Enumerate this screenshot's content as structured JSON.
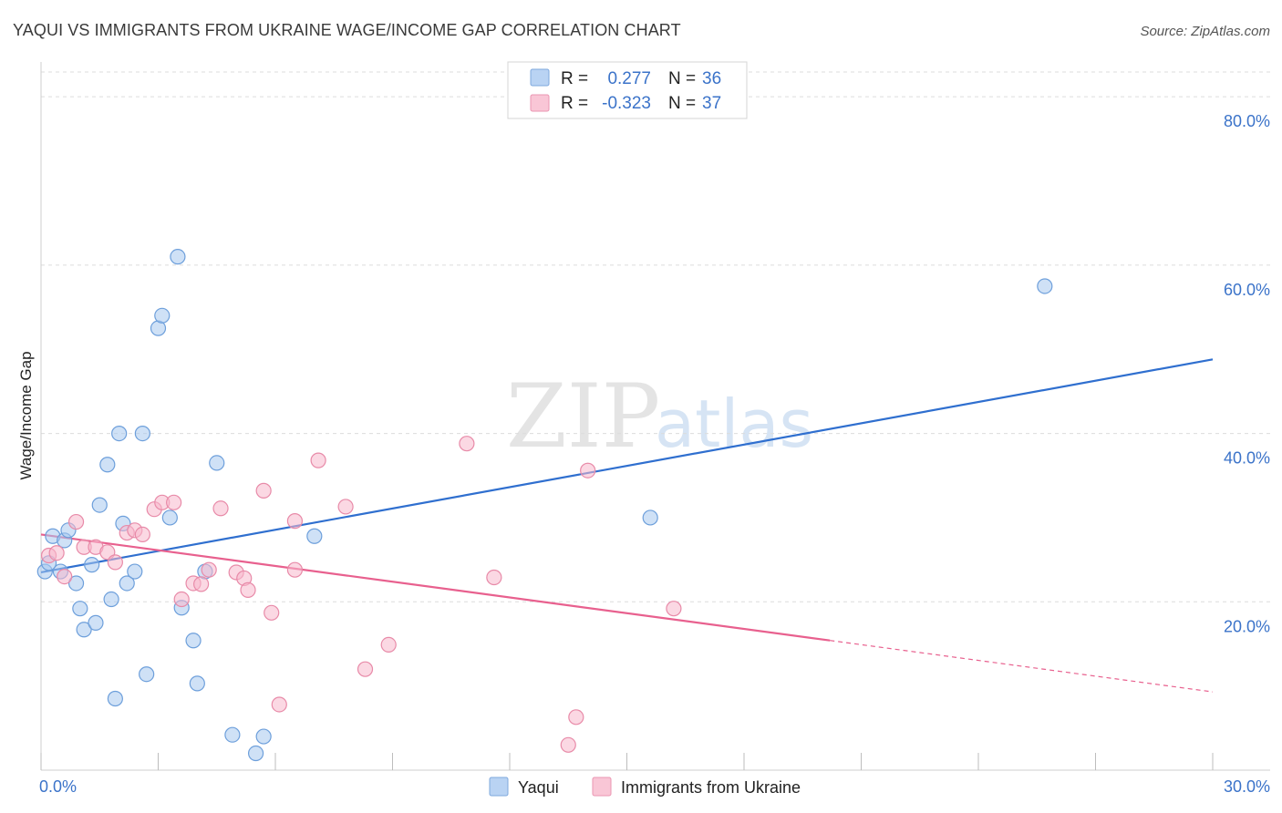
{
  "chart_data": {
    "type": "scatter",
    "title": "YAQUI VS IMMIGRANTS FROM UKRAINE WAGE/INCOME GAP CORRELATION CHART",
    "source": "Source: ZipAtlas.com",
    "ylabel": "Wage/Income Gap",
    "xlabel": "",
    "xlim": [
      0,
      30
    ],
    "ylim": [
      0,
      85
    ],
    "x_tick_labels": [
      {
        "value": 0,
        "label": "0.0%"
      },
      {
        "value": 30,
        "label": "30.0%"
      }
    ],
    "y_tick_labels": [
      {
        "value": 20,
        "label": "20.0%"
      },
      {
        "value": 40,
        "label": "40.0%"
      },
      {
        "value": 60,
        "label": "60.0%"
      },
      {
        "value": 80,
        "label": "80.0%"
      }
    ],
    "x_minor_ticks": [
      0,
      3,
      6,
      9,
      12,
      15,
      18,
      21,
      24,
      27,
      30
    ],
    "grid": true,
    "watermark": {
      "zip": "ZIP",
      "atlas": "atlas"
    },
    "stats_legend": [
      {
        "series": "Yaqui",
        "r_label": "R =",
        "r_value": "0.277",
        "n_label": "N =",
        "n_value": "36"
      },
      {
        "series": "Immigrants from Ukraine",
        "r_label": "R =",
        "r_value": "-0.323",
        "n_label": "N =",
        "n_value": "37"
      }
    ],
    "series": [
      {
        "name": "Yaqui",
        "color": "#a8c8ef",
        "stroke": "#6d9fdb",
        "trend_color": "#2f6fcf",
        "trend": {
          "x1": 0,
          "y1": 23.5,
          "x2": 30,
          "y2": 48.8,
          "solid_until": 30
        },
        "points": [
          [
            0.1,
            23.6
          ],
          [
            0.2,
            24.6
          ],
          [
            0.3,
            27.8
          ],
          [
            0.5,
            23.6
          ],
          [
            0.6,
            27.3
          ],
          [
            0.7,
            28.5
          ],
          [
            0.9,
            22.2
          ],
          [
            1.0,
            19.2
          ],
          [
            1.1,
            16.7
          ],
          [
            1.3,
            24.4
          ],
          [
            1.4,
            17.5
          ],
          [
            1.5,
            31.5
          ],
          [
            1.7,
            36.3
          ],
          [
            1.8,
            20.3
          ],
          [
            1.9,
            8.5
          ],
          [
            2.0,
            40.0
          ],
          [
            2.1,
            29.3
          ],
          [
            2.2,
            22.2
          ],
          [
            2.4,
            23.6
          ],
          [
            2.6,
            40.0
          ],
          [
            2.7,
            11.4
          ],
          [
            3.0,
            52.5
          ],
          [
            3.1,
            54.0
          ],
          [
            3.3,
            30.0
          ],
          [
            3.5,
            61.0
          ],
          [
            3.6,
            19.3
          ],
          [
            3.9,
            15.4
          ],
          [
            4.0,
            10.3
          ],
          [
            4.2,
            23.6
          ],
          [
            4.5,
            36.5
          ],
          [
            4.9,
            4.2
          ],
          [
            5.5,
            2.0
          ],
          [
            5.7,
            4.0
          ],
          [
            7.0,
            27.8
          ],
          [
            15.6,
            30.0
          ],
          [
            25.7,
            57.5
          ]
        ]
      },
      {
        "name": "Immigrants from Ukraine",
        "color": "#f7b8cc",
        "stroke": "#e88aa8",
        "trend_color": "#e8608e",
        "trend": {
          "x1": 0,
          "y1": 28.0,
          "x2": 30,
          "y2": 9.3,
          "solid_until": 20.2
        },
        "points": [
          [
            0.2,
            25.5
          ],
          [
            0.4,
            25.8
          ],
          [
            0.6,
            23.0
          ],
          [
            0.9,
            29.5
          ],
          [
            1.1,
            26.5
          ],
          [
            1.4,
            26.5
          ],
          [
            1.7,
            25.9
          ],
          [
            1.9,
            24.7
          ],
          [
            2.2,
            28.2
          ],
          [
            2.4,
            28.5
          ],
          [
            2.6,
            28.0
          ],
          [
            2.9,
            31.0
          ],
          [
            3.1,
            31.8
          ],
          [
            3.4,
            31.8
          ],
          [
            3.6,
            20.3
          ],
          [
            3.9,
            22.2
          ],
          [
            4.1,
            22.1
          ],
          [
            4.3,
            23.8
          ],
          [
            4.6,
            31.1
          ],
          [
            5.0,
            23.5
          ],
          [
            5.2,
            22.8
          ],
          [
            5.3,
            21.4
          ],
          [
            5.7,
            33.2
          ],
          [
            5.9,
            18.7
          ],
          [
            6.1,
            7.8
          ],
          [
            6.5,
            29.6
          ],
          [
            6.5,
            23.8
          ],
          [
            7.1,
            36.8
          ],
          [
            7.8,
            31.3
          ],
          [
            8.3,
            12.0
          ],
          [
            8.9,
            14.9
          ],
          [
            10.9,
            38.8
          ],
          [
            11.6,
            22.9
          ],
          [
            13.5,
            3.0
          ],
          [
            13.7,
            6.3
          ],
          [
            14.0,
            35.6
          ],
          [
            16.2,
            19.2
          ]
        ]
      }
    ]
  }
}
